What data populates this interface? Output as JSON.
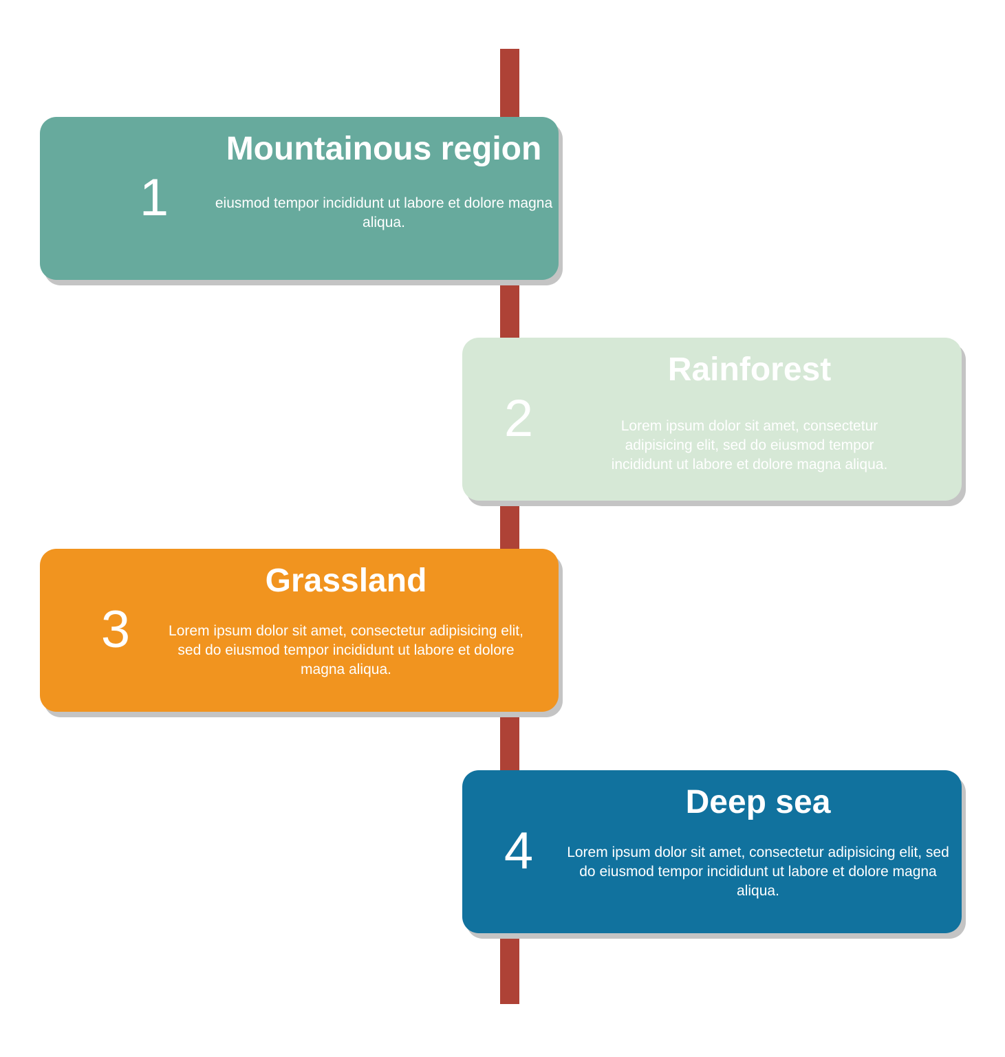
{
  "timeline": {
    "spine_color": "#ae4236",
    "items": [
      {
        "number": "1",
        "title": "Mountainous region",
        "text": "eiusmod tempor incididunt ut labore et dolore magna aliqua.",
        "color": "#67aa9d"
      },
      {
        "number": "2",
        "title": "Rainforest",
        "text": "Lorem ipsum dolor sit amet, consectetur adipisicing elit, sed do eiusmod tempor incididunt ut labore et dolore magna aliqua.",
        "color": "#d6e8d6"
      },
      {
        "number": "3",
        "title": "Grassland",
        "text": "Lorem ipsum dolor sit amet, consectetur adipisicing elit, sed do eiusmod tempor incididunt ut labore et dolore magna aliqua.",
        "color": "#f1941f"
      },
      {
        "number": "4",
        "title": "Deep sea",
        "text": "Lorem ipsum dolor sit amet, consectetur adipisicing elit, sed do eiusmod tempor incididunt ut labore et dolore magna aliqua.",
        "color": "#11729e"
      }
    ]
  }
}
